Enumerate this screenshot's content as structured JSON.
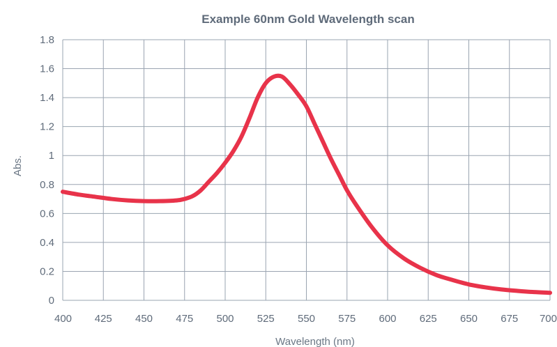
{
  "chart_data": {
    "type": "line",
    "title": "Example 60nm Gold Wavelength scan",
    "xlabel": "Wavelength (nm)",
    "ylabel": "Abs.",
    "xlim": [
      400,
      700
    ],
    "ylim": [
      0,
      1.8
    ],
    "xticks": [
      400,
      425,
      450,
      475,
      500,
      525,
      550,
      575,
      600,
      625,
      650,
      675,
      700
    ],
    "yticks": [
      "0",
      "0.2",
      "0.4",
      "0.6",
      "0.8",
      "1",
      "1.2",
      "1.4",
      "1.6",
      "1.8"
    ],
    "grid": true,
    "series": [
      {
        "color": "#e8334a",
        "x": [
          400,
          410,
          420,
          430,
          440,
          450,
          460,
          470,
          475,
          480,
          485,
          490,
          495,
          500,
          505,
          510,
          515,
          520,
          525,
          530,
          535,
          540,
          545,
          550,
          555,
          560,
          565,
          570,
          575,
          580,
          590,
          600,
          610,
          620,
          630,
          640,
          650,
          660,
          670,
          680,
          690,
          700
        ],
        "y": [
          0.75,
          0.73,
          0.715,
          0.7,
          0.69,
          0.685,
          0.685,
          0.69,
          0.7,
          0.72,
          0.76,
          0.82,
          0.88,
          0.95,
          1.03,
          1.13,
          1.26,
          1.4,
          1.5,
          1.545,
          1.545,
          1.49,
          1.42,
          1.34,
          1.22,
          1.1,
          0.98,
          0.87,
          0.76,
          0.67,
          0.51,
          0.38,
          0.29,
          0.225,
          0.175,
          0.14,
          0.11,
          0.09,
          0.075,
          0.065,
          0.057,
          0.052
        ]
      }
    ]
  }
}
